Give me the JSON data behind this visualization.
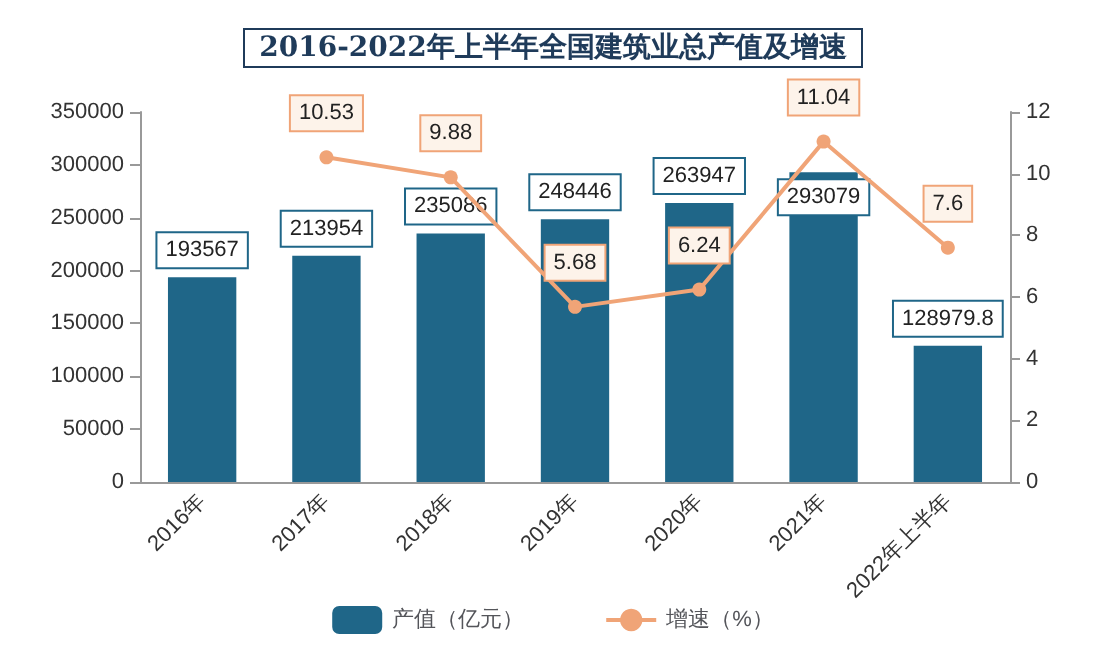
{
  "chart_data": {
    "type": "bar",
    "title": "2016-2022年上半年全国建筑业总产值及增速",
    "categories": [
      "2016年",
      "2017年",
      "2018年",
      "2019年",
      "2020年",
      "2021年",
      "2022年上半年"
    ],
    "series": [
      {
        "name": "产值（亿元）",
        "color": "#1f6688",
        "values": [
          193567,
          213954,
          235086,
          248446,
          263947,
          293079,
          128979.8
        ]
      },
      {
        "name": "增速（%）",
        "type": "line",
        "axis": "y2",
        "color": "#f0a477",
        "values": [
          null,
          10.53,
          9.88,
          5.68,
          6.24,
          11.04,
          7.6
        ]
      }
    ],
    "ylim": [
      0,
      350000
    ],
    "yticks": [
      0,
      50000,
      100000,
      150000,
      200000,
      250000,
      300000,
      350000
    ],
    "y2lim": [
      0,
      12
    ],
    "y2ticks": [
      0,
      2,
      4,
      6,
      8,
      10,
      12
    ],
    "data_labels": true,
    "legend": "bottom",
    "marker": "circle",
    "grid": false
  }
}
